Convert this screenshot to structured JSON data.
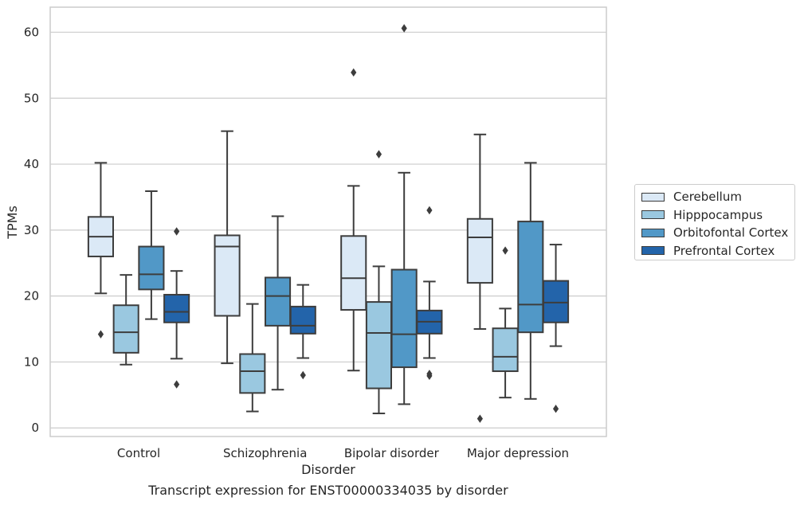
{
  "chart_data": {
    "type": "boxplot",
    "title": "",
    "caption": "Transcript expression for ENST00000334035 by disorder",
    "xlabel": "Disorder",
    "ylabel": "TPMs",
    "ylim": [
      -1.3,
      63.8
    ],
    "yticks": [
      0,
      10,
      20,
      30,
      40,
      50,
      60
    ],
    "grid": true,
    "legend_position": "right",
    "categories": [
      "Control",
      "Schizophrenia",
      "Bipolar disorder",
      "Major depression"
    ],
    "series": [
      {
        "name": "Cerebellum",
        "color": "#dbe9f6",
        "boxes": [
          {
            "whislo": 20.4,
            "q1": 26.0,
            "med": 29.0,
            "q3": 32.0,
            "whishi": 40.2,
            "fliers": [
              14.2
            ]
          },
          {
            "whislo": 9.8,
            "q1": 17.0,
            "med": 27.5,
            "q3": 29.2,
            "whishi": 45.0,
            "fliers": []
          },
          {
            "whislo": 8.7,
            "q1": 17.9,
            "med": 22.7,
            "q3": 29.1,
            "whishi": 36.7,
            "fliers": [
              53.9
            ]
          },
          {
            "whislo": 15.0,
            "q1": 22.0,
            "med": 28.9,
            "q3": 31.7,
            "whishi": 44.5,
            "fliers": [
              1.4
            ]
          }
        ]
      },
      {
        "name": "Hipppocampus",
        "color": "#9ac8e0",
        "boxes": [
          {
            "whislo": 9.6,
            "q1": 11.4,
            "med": 14.5,
            "q3": 18.6,
            "whishi": 23.2,
            "fliers": []
          },
          {
            "whislo": 2.5,
            "q1": 5.3,
            "med": 8.6,
            "q3": 11.2,
            "whishi": 18.8,
            "fliers": []
          },
          {
            "whislo": 2.2,
            "q1": 6.0,
            "med": 14.4,
            "q3": 19.1,
            "whishi": 24.5,
            "fliers": [
              41.5
            ]
          },
          {
            "whislo": 4.6,
            "q1": 8.6,
            "med": 10.8,
            "q3": 15.1,
            "whishi": 18.1,
            "fliers": [
              26.9
            ]
          }
        ]
      },
      {
        "name": "Orbitofontal Cortex",
        "color": "#5198c7",
        "boxes": [
          {
            "whislo": 16.5,
            "q1": 21.0,
            "med": 23.3,
            "q3": 27.5,
            "whishi": 35.9,
            "fliers": []
          },
          {
            "whislo": 5.8,
            "q1": 15.5,
            "med": 20.0,
            "q3": 22.8,
            "whishi": 32.1,
            "fliers": []
          },
          {
            "whislo": 3.6,
            "q1": 9.2,
            "med": 14.2,
            "q3": 24.0,
            "whishi": 38.7,
            "fliers": [
              60.6
            ]
          },
          {
            "whislo": 4.4,
            "q1": 14.5,
            "med": 18.7,
            "q3": 31.3,
            "whishi": 40.2,
            "fliers": []
          }
        ]
      },
      {
        "name": "Prefrontal Cortex",
        "color": "#2364aa",
        "boxes": [
          {
            "whislo": 10.5,
            "q1": 16.0,
            "med": 17.6,
            "q3": 20.2,
            "whishi": 23.8,
            "fliers": [
              29.8,
              6.6
            ]
          },
          {
            "whislo": 10.6,
            "q1": 14.3,
            "med": 15.5,
            "q3": 18.4,
            "whishi": 21.7,
            "fliers": [
              8.0
            ]
          },
          {
            "whislo": 10.6,
            "q1": 14.3,
            "med": 16.1,
            "q3": 17.8,
            "whishi": 22.2,
            "fliers": [
              33.0,
              8.2,
              7.9
            ]
          },
          {
            "whislo": 12.4,
            "q1": 16.0,
            "med": 19.0,
            "q3": 22.3,
            "whishi": 27.8,
            "fliers": [
              2.9
            ]
          }
        ]
      }
    ]
  }
}
